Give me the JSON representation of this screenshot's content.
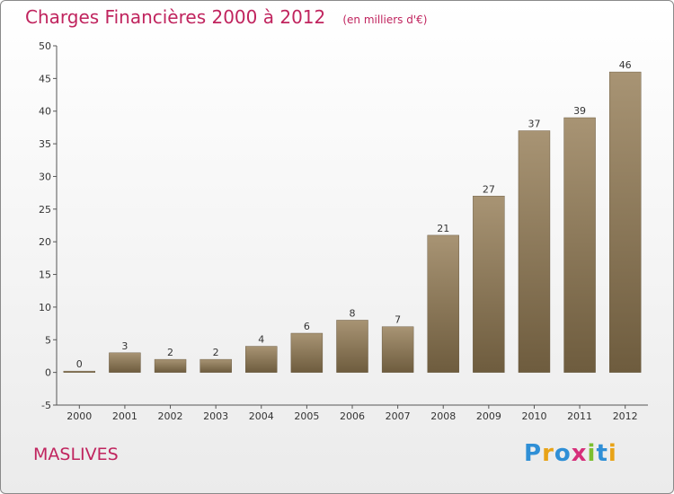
{
  "header": {
    "title": "Charges Financières 2000 à 2012",
    "subtitle": "(en milliers d'€)"
  },
  "footer": {
    "place": "MASLIVES",
    "brand_letters": [
      "P",
      "r",
      "o",
      "x",
      "i",
      "t",
      "i"
    ],
    "brand_colors": [
      "#2f8fd6",
      "#e8a317",
      "#2f8fd6",
      "#d62f7a",
      "#7cbf2f",
      "#2f8fd6",
      "#e8a317"
    ]
  },
  "chart_data": {
    "type": "bar",
    "title": "Charges Financières 2000 à 2012",
    "subtitle": "(en milliers d'€)",
    "categories": [
      "2000",
      "2001",
      "2002",
      "2003",
      "2004",
      "2005",
      "2006",
      "2007",
      "2008",
      "2009",
      "2010",
      "2011",
      "2012"
    ],
    "values": [
      0,
      3,
      2,
      2,
      4,
      6,
      8,
      7,
      21,
      27,
      37,
      39,
      46
    ],
    "ylim": [
      -5,
      50
    ],
    "yticks": [
      -5,
      0,
      5,
      10,
      15,
      20,
      25,
      30,
      35,
      40,
      45,
      50
    ],
    "grid": false,
    "legend": false,
    "bar_color_top": "#a89474",
    "bar_color_bottom": "#6e5c3e"
  }
}
